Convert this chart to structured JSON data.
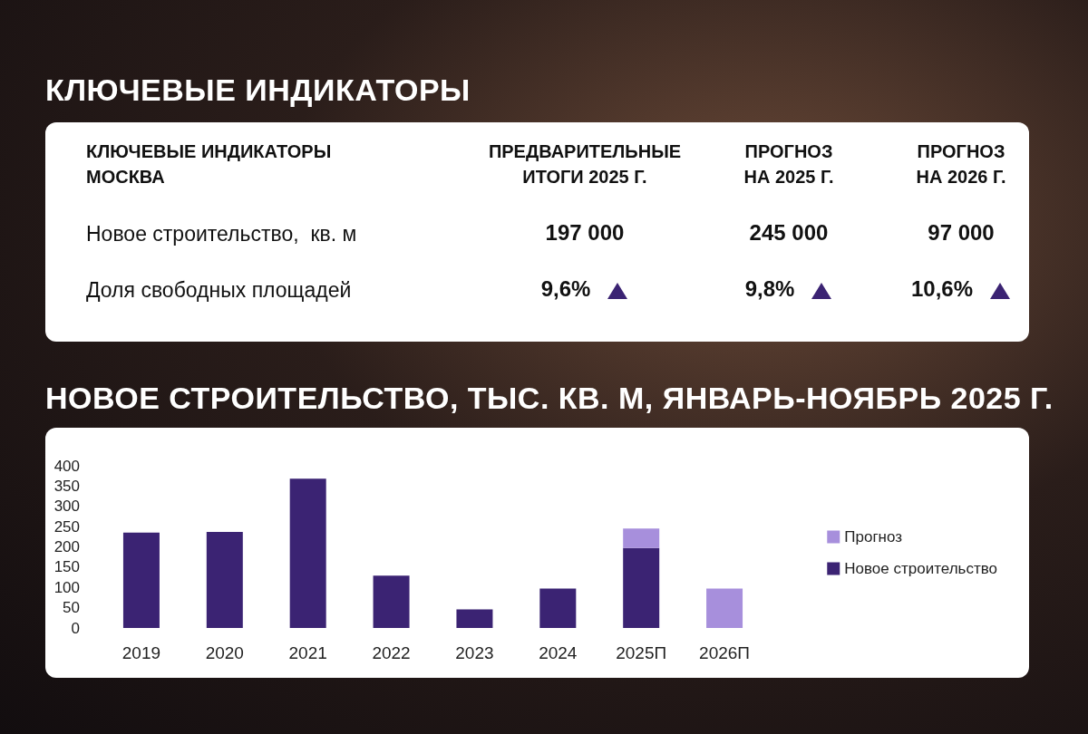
{
  "chart_data": [
    {
      "type": "other",
      "title": "КЛЮЧЕВЫЕ ИНДИКАТОРЫ",
      "categories": [
        "КЛЮЧЕВЫЕ ИНДИКАТОРЫ\nМОСКВА",
        "ПРЕДВАРИТЕЛЬНЫЕ\nИТОГИ 2025 Г.",
        "ПРОГНОЗ\nНА 2025 Г.",
        "ПРОГНОЗ\nНА 2026 Г."
      ],
      "y_categories": [
        "Новое строительство,  кв. м",
        "Доля свободных площадей"
      ],
      "cell_labels": [
        [
          "197 000",
          "245 000",
          "97 000"
        ],
        [
          "9,6%",
          "9,8%",
          "10,6%"
        ]
      ],
      "color": "#3b2373"
    },
    {
      "type": "bar",
      "title": "НОВОЕ СТРОИТЕЛЬСТВО, ТЫС. КВ. М, ЯНВАРЬ-НОЯБРЬ 2025 Г.",
      "stacked": true,
      "categories": [
        "2019",
        "2020",
        "2021",
        "2022",
        "2023",
        "2024",
        "2025П",
        "2026П"
      ],
      "series": [
        {
          "name": "Новое строительство",
          "color": "#3b2373",
          "values": [
            235,
            237,
            368,
            129,
            46,
            97,
            197,
            null
          ]
        },
        {
          "name": "Прогноз",
          "color": "#a78fdc",
          "values": [
            null,
            null,
            null,
            null,
            null,
            null,
            48,
            97
          ]
        }
      ],
      "ylim": [
        0,
        400
      ],
      "yticks": [
        0,
        50,
        100,
        150,
        200,
        250,
        300,
        350,
        400
      ],
      "grid": false,
      "legend": "right"
    }
  ]
}
